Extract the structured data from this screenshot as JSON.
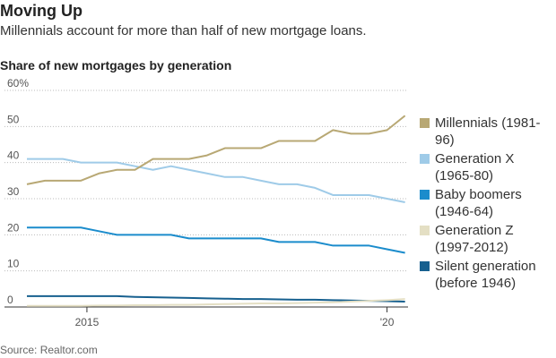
{
  "chart_data": {
    "type": "line",
    "title": "Moving Up",
    "subtitle": "Millennials account for more than half of new mortgage loans.",
    "heading": "Share of new mortgages by generation",
    "source": "Source: Realtor.com",
    "x": [
      2014.0,
      2014.3,
      2014.6,
      2014.9,
      2015.2,
      2015.5,
      2015.8,
      2016.1,
      2016.4,
      2016.7,
      2017.0,
      2017.3,
      2017.6,
      2017.9,
      2018.2,
      2018.5,
      2018.8,
      2019.1,
      2019.4,
      2019.7,
      2020.0,
      2020.3
    ],
    "xlim": [
      2014.0,
      2020.35
    ],
    "xticks": [
      2015,
      {
        "value": 2020,
        "label": "'20"
      }
    ],
    "ylim": [
      0,
      60
    ],
    "yticks": [
      0,
      10,
      20,
      30,
      40,
      50,
      {
        "value": 60,
        "label": "60%"
      }
    ],
    "grid": true,
    "series": [
      {
        "name": "Millennials (1981-96)",
        "color": "#b8a874",
        "values": [
          34,
          35,
          35,
          35,
          37,
          38,
          38,
          41,
          41,
          41,
          42,
          44,
          44,
          44,
          46,
          46,
          46,
          49,
          48,
          48,
          49,
          53
        ]
      },
      {
        "name": "Generation X (1965-80)",
        "color": "#9fcbe8",
        "values": [
          41,
          41,
          41,
          40,
          40,
          40,
          39,
          38,
          39,
          38,
          37,
          36,
          36,
          35,
          34,
          34,
          33,
          31,
          31,
          31,
          30,
          29
        ]
      },
      {
        "name": "Baby boomers (1946-64)",
        "color": "#1b8ccc",
        "values": [
          22,
          22,
          22,
          22,
          21,
          20,
          20,
          20,
          20,
          19,
          19,
          19,
          19,
          19,
          18,
          18,
          18,
          17,
          17,
          17,
          16,
          15
        ]
      },
      {
        "name": "Generation Z (1997-2012)",
        "color": "#e4dfc4",
        "values": [
          0.3,
          0.3,
          0.3,
          0.3,
          0.4,
          0.4,
          0.5,
          0.5,
          0.6,
          0.6,
          0.7,
          0.8,
          0.9,
          1,
          1,
          1.1,
          1.2,
          1.3,
          1.5,
          1.7,
          1.9,
          2.2
        ]
      },
      {
        "name": "Silent generation (before 1946)",
        "color": "#17608f",
        "values": [
          3,
          3,
          3,
          3,
          3,
          3,
          2.8,
          2.7,
          2.6,
          2.5,
          2.4,
          2.3,
          2.2,
          2.2,
          2.1,
          2,
          2,
          1.9,
          1.8,
          1.7,
          1.6,
          1.5
        ]
      }
    ]
  }
}
